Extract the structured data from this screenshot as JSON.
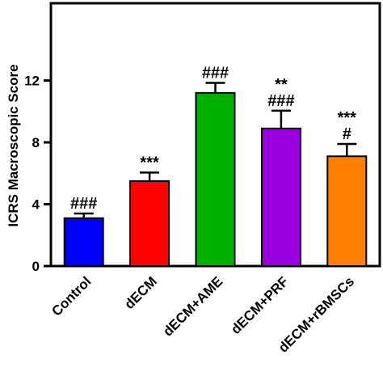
{
  "chart_data": {
    "type": "bar",
    "title": "",
    "xlabel": "",
    "ylabel": "ICRS Macroscopic Score",
    "ylim": [
      0,
      17
    ],
    "yticks": [
      "0",
      "4",
      "8",
      "12"
    ],
    "categories": [
      "Control",
      "dECM",
      "dECM+AME",
      "dECM+PRF",
      "dECM+rBMSCs"
    ],
    "values": [
      3.1,
      5.5,
      11.2,
      8.9,
      7.1
    ],
    "errors": [
      0.3,
      0.55,
      0.65,
      1.15,
      0.8
    ],
    "colors": [
      "#0000FF",
      "#FF0000",
      "#00B000",
      "#9900DD",
      "#FF8000"
    ],
    "annotations": [
      [
        "###"
      ],
      [
        "***"
      ],
      [
        "###"
      ],
      [
        "**",
        "###"
      ],
      [
        "***",
        "#"
      ]
    ],
    "grid": false,
    "legend": "none"
  }
}
